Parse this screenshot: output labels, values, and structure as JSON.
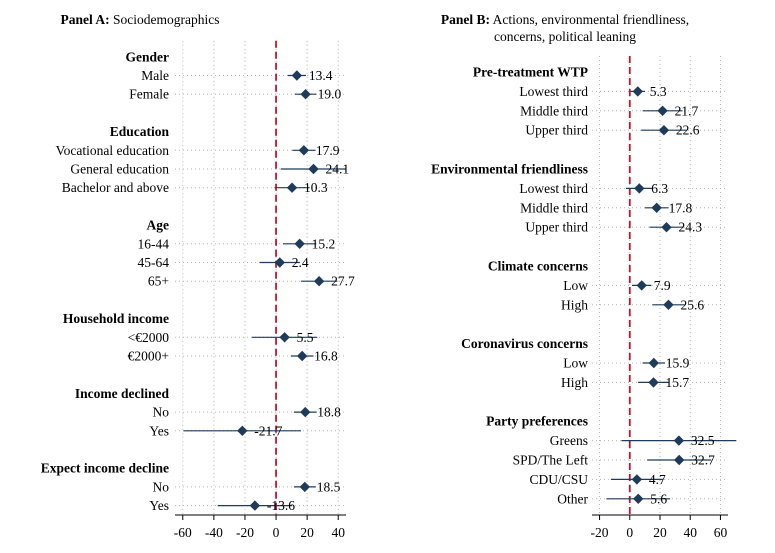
{
  "chart_data": [
    {
      "type": "coefficient-dot",
      "panel": "A",
      "title_bold": "Panel A:",
      "title": "Sociodemographics",
      "xlim": [
        -65,
        45
      ],
      "xticks": [
        -60,
        -40,
        -20,
        0,
        20,
        40
      ],
      "reference_line": 0,
      "rows": [
        {
          "kind": "header",
          "label": "Gender"
        },
        {
          "kind": "item",
          "label": "Male",
          "value": 13.4,
          "ci": [
            7.5,
            19.3
          ],
          "value_label": "13.4"
        },
        {
          "kind": "item",
          "label": "Female",
          "value": 19.0,
          "ci": [
            12.0,
            26.0
          ],
          "value_label": "19.0"
        },
        {
          "kind": "gap"
        },
        {
          "kind": "header",
          "label": "Education"
        },
        {
          "kind": "item",
          "label": "Vocational education",
          "value": 17.9,
          "ci": [
            10.5,
            25.3
          ],
          "value_label": "17.9"
        },
        {
          "kind": "item",
          "label": "General education",
          "value": 24.1,
          "ci": [
            3.0,
            45.0
          ],
          "value_label": "24.1"
        },
        {
          "kind": "item",
          "label": "Bachelor and above",
          "value": 10.3,
          "ci": [
            -1.0,
            21.6
          ],
          "value_label": "10.3"
        },
        {
          "kind": "gap"
        },
        {
          "kind": "header",
          "label": "Age"
        },
        {
          "kind": "item",
          "label": "16-44",
          "value": 15.2,
          "ci": [
            4.5,
            25.9
          ],
          "value_label": "15.2"
        },
        {
          "kind": "item",
          "label": "45-64",
          "value": 2.4,
          "ci": [
            -10.5,
            15.3
          ],
          "value_label": "2.4"
        },
        {
          "kind": "item",
          "label": "65+",
          "value": 27.7,
          "ci": [
            16.0,
            39.4
          ],
          "value_label": "27.7"
        },
        {
          "kind": "gap"
        },
        {
          "kind": "header",
          "label": "Household income"
        },
        {
          "kind": "item",
          "label": "<€2000",
          "value": 5.5,
          "ci": [
            -15.5,
            26.5
          ],
          "value_label": "5.5"
        },
        {
          "kind": "item",
          "label": "€2000+",
          "value": 16.8,
          "ci": [
            9.5,
            24.1
          ],
          "value_label": "16.8"
        },
        {
          "kind": "gap"
        },
        {
          "kind": "header",
          "label": "Income declined"
        },
        {
          "kind": "item",
          "label": "No",
          "value": 18.8,
          "ci": [
            11.5,
            26.1
          ],
          "value_label": "18.8"
        },
        {
          "kind": "item",
          "label": "Yes",
          "value": -21.7,
          "ci": [
            -59.5,
            16.1
          ],
          "value_label": "-21.7"
        },
        {
          "kind": "gap"
        },
        {
          "kind": "header",
          "label": "Expect income decline"
        },
        {
          "kind": "item",
          "label": "No",
          "value": 18.5,
          "ci": [
            11.5,
            25.5
          ],
          "value_label": "18.5"
        },
        {
          "kind": "item",
          "label": "Yes",
          "value": -13.6,
          "ci": [
            -37.5,
            10.3
          ],
          "value_label": "-13.6"
        }
      ]
    },
    {
      "type": "coefficient-dot",
      "panel": "B",
      "title_bold": "Panel B:",
      "title": "Actions, environmental friendliness,",
      "title_line2": "concerns, political leaning",
      "xlim": [
        -25,
        65
      ],
      "xticks": [
        -20,
        0,
        20,
        40,
        60
      ],
      "reference_line": 0,
      "rows": [
        {
          "kind": "header",
          "label": "Pre-treatment WTP"
        },
        {
          "kind": "item",
          "label": "Lowest third",
          "value": 5.3,
          "ci": [
            0.5,
            10.1
          ],
          "value_label": "5.3"
        },
        {
          "kind": "item",
          "label": "Middle third",
          "value": 21.7,
          "ci": [
            8.5,
            34.9
          ],
          "value_label": "21.7"
        },
        {
          "kind": "item",
          "label": "Upper third",
          "value": 22.6,
          "ci": [
            7.5,
            37.7
          ],
          "value_label": "22.6"
        },
        {
          "kind": "gap"
        },
        {
          "kind": "header",
          "label": "Environmental friendliness"
        },
        {
          "kind": "item",
          "label": "Lowest third",
          "value": 6.3,
          "ci": [
            -2.5,
            15.1
          ],
          "value_label": "6.3"
        },
        {
          "kind": "item",
          "label": "Middle third",
          "value": 17.8,
          "ci": [
            10.0,
            25.6
          ],
          "value_label": "17.8"
        },
        {
          "kind": "item",
          "label": "Upper third",
          "value": 24.3,
          "ci": [
            13.0,
            35.6
          ],
          "value_label": "24.3"
        },
        {
          "kind": "gap"
        },
        {
          "kind": "header",
          "label": "Climate concerns"
        },
        {
          "kind": "item",
          "label": "Low",
          "value": 7.9,
          "ci": [
            1.5,
            14.3
          ],
          "value_label": "7.9"
        },
        {
          "kind": "item",
          "label": "High",
          "value": 25.6,
          "ci": [
            15.0,
            36.2
          ],
          "value_label": "25.6"
        },
        {
          "kind": "gap"
        },
        {
          "kind": "header",
          "label": "Coronavirus concerns"
        },
        {
          "kind": "item",
          "label": "Low",
          "value": 15.9,
          "ci": [
            8.5,
            23.3
          ],
          "value_label": "15.9"
        },
        {
          "kind": "item",
          "label": "High",
          "value": 15.7,
          "ci": [
            5.5,
            25.9
          ],
          "value_label": "15.7"
        },
        {
          "kind": "gap"
        },
        {
          "kind": "header",
          "label": "Party preferences"
        },
        {
          "kind": "item",
          "label": "Greens",
          "value": 32.5,
          "ci": [
            -5.5,
            70.5
          ],
          "value_label": "32.5"
        },
        {
          "kind": "item",
          "label": "SPD/The Left",
          "value": 32.7,
          "ci": [
            11.5,
            53.9
          ],
          "value_label": "32.7"
        },
        {
          "kind": "item",
          "label": "CDU/CSU",
          "value": 4.7,
          "ci": [
            -12.5,
            21.9
          ],
          "value_label": "4.7"
        },
        {
          "kind": "item",
          "label": "Other",
          "value": 5.6,
          "ci": [
            -15.5,
            26.7
          ],
          "value_label": "5.6"
        }
      ]
    }
  ],
  "colors": {
    "marker": "#1f3b5a",
    "reference_line": "#c0172f",
    "grid": "#b5b5b5"
  }
}
